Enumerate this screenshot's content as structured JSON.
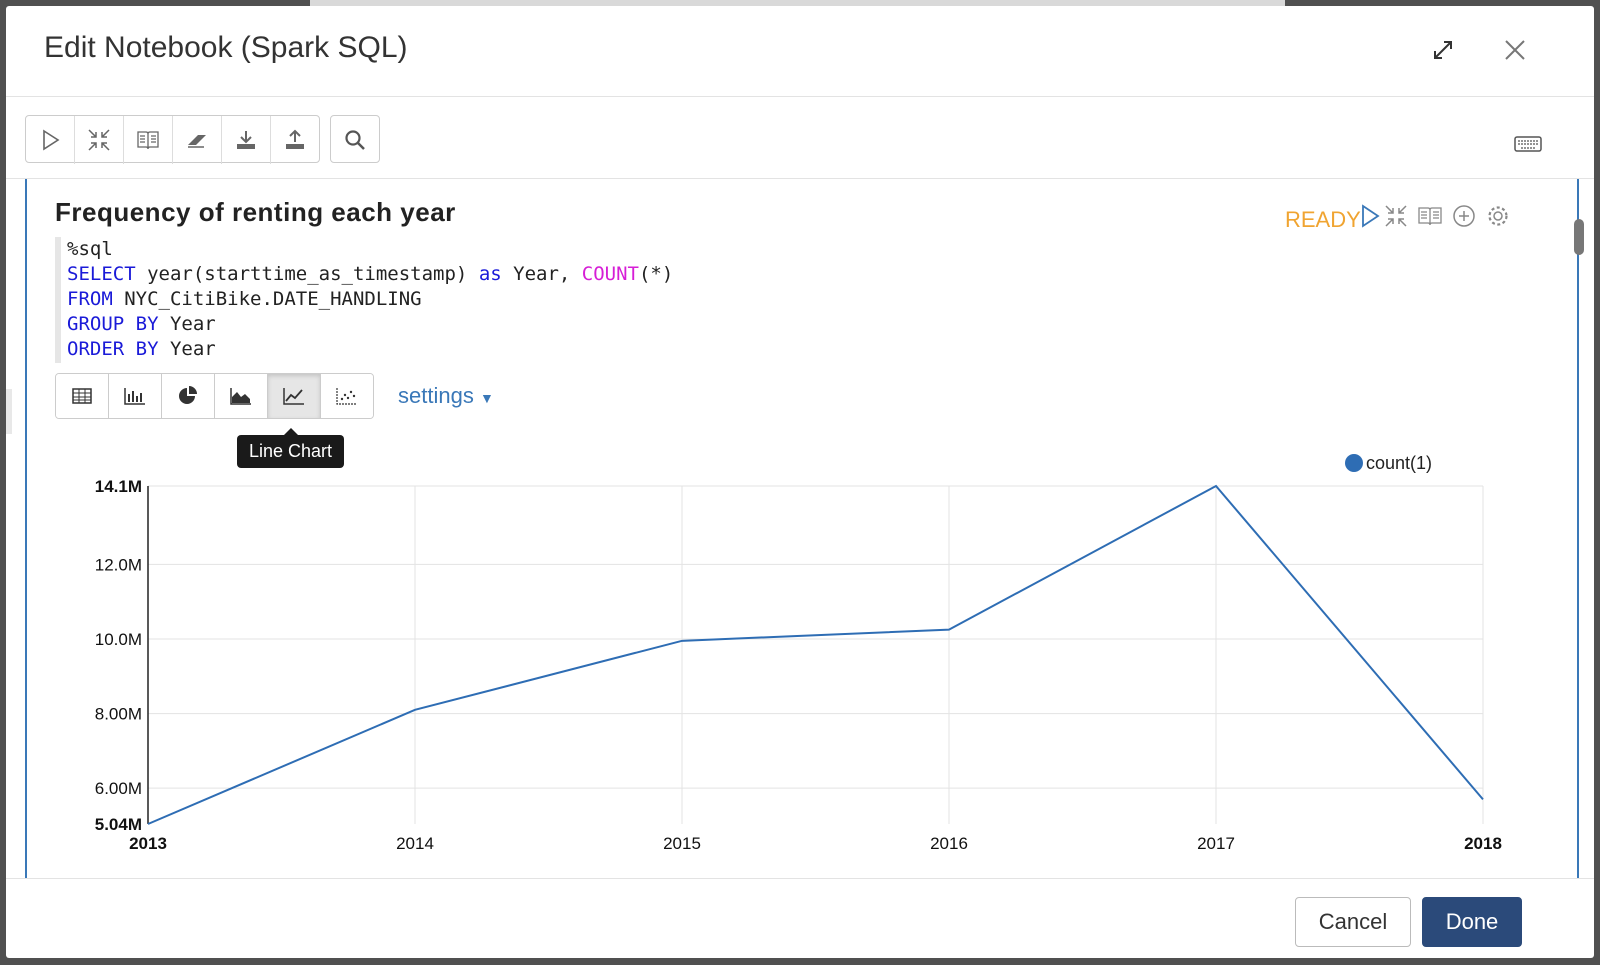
{
  "modal": {
    "title": "Edit Notebook (Spark SQL)",
    "header_icons": [
      "expand-icon",
      "close-icon"
    ]
  },
  "toolbar": {
    "buttons": [
      "run-all-icon",
      "collapse-icon",
      "book-icon",
      "eraser-icon",
      "download-icon",
      "upload-icon"
    ],
    "search_icon": "search-icon",
    "keyboard_icon": "keyboard-icon"
  },
  "paragraph": {
    "title": "Frequency of renting each year",
    "status": "READY",
    "code_lines": [
      "%sql",
      "SELECT year(starttime_as_timestamp) as Year, COUNT(*)",
      "FROM NYC_CitiBike.DATE_HANDLING",
      "GROUP BY Year",
      "ORDER BY Year"
    ],
    "viz_buttons": [
      "table-icon",
      "bar-chart-icon",
      "pie-chart-icon",
      "area-chart-icon",
      "line-chart-icon",
      "scatter-chart-icon"
    ],
    "active_viz": "line-chart-icon",
    "settings_label": "settings",
    "tooltip": "Line Chart"
  },
  "chart_data": {
    "type": "line",
    "x": [
      2013,
      2014,
      2015,
      2016,
      2017,
      2018
    ],
    "x_tick_labels": [
      "2013",
      "2014",
      "2015",
      "2016",
      "2017",
      "2018"
    ],
    "series": [
      {
        "name": "count(1)",
        "values": [
          5.04,
          8.1,
          9.95,
          10.25,
          14.1,
          5.7
        ],
        "color": "#2e6db4"
      }
    ],
    "y_unit": "M",
    "ylim": [
      5.04,
      14.1
    ],
    "y_ticks": [
      6.0,
      8.0,
      10.0,
      12.0
    ],
    "y_tick_labels": [
      "6.00M",
      "8.00M",
      "10.0M",
      "12.0M"
    ],
    "y_min_label": "5.04M",
    "y_max_label": "14.1M",
    "grid": true,
    "legend": "top-right"
  },
  "footer": {
    "cancel_label": "Cancel",
    "done_label": "Done"
  }
}
